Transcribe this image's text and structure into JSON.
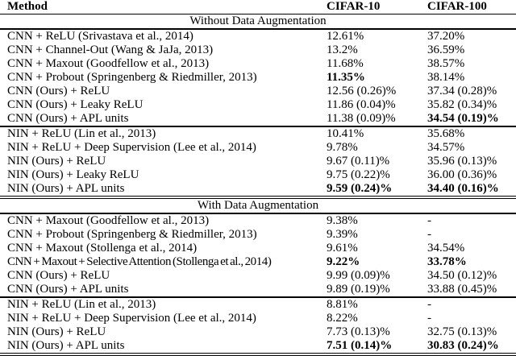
{
  "table": {
    "header": {
      "method": "Method",
      "cifar10": "CIFAR-10",
      "cifar100": "CIFAR-100"
    },
    "sections": [
      {
        "title": "Without Data Augmentation",
        "groups": [
          {
            "rows": [
              {
                "method": "CNN + ReLU (Srivastava et al., 2014)",
                "cifar10": "12.61%",
                "cifar100": "37.20%"
              },
              {
                "method": "CNN + Channel-Out (Wang & JaJa, 2013)",
                "cifar10": "13.2%",
                "cifar100": "36.59%"
              },
              {
                "method": "CNN + Maxout (Goodfellow et al., 2013)",
                "cifar10": "11.68%",
                "cifar100": "38.57%"
              },
              {
                "method": "CNN + Probout (Springenberg & Riedmiller, 2013)",
                "cifar10": "11.35%",
                "cifar10_bold": true,
                "cifar100": "38.14%"
              },
              {
                "method": "CNN (Ours) + ReLU",
                "cifar10": "12.56 (0.26)%",
                "cifar100": "37.34 (0.28)%"
              },
              {
                "method": "CNN (Ours) + Leaky ReLU",
                "cifar10": "11.86 (0.04)%",
                "cifar100": "35.82 (0.34)%"
              },
              {
                "method": "CNN (Ours) + APL units",
                "cifar10": "11.38 (0.09)%",
                "cifar100": "34.54 (0.19)%",
                "cifar100_bold": true
              }
            ]
          },
          {
            "rows": [
              {
                "method": "NIN + ReLU (Lin et al., 2013)",
                "cifar10": "10.41%",
                "cifar100": "35.68%"
              },
              {
                "method": "NIN + ReLU + Deep Supervision (Lee et al., 2014)",
                "cifar10": "9.78%",
                "cifar100": "34.57%"
              },
              {
                "method": "NIN (Ours) + ReLU",
                "cifar10": "9.67 (0.11)%",
                "cifar100": "35.96 (0.13)%"
              },
              {
                "method": "NIN (Ours) + Leaky ReLU",
                "cifar10": "9.75 (0.22)%",
                "cifar100": "36.00 (0.36)%"
              },
              {
                "method": "NIN (Ours) + APL units",
                "cifar10": "9.59 (0.24)%",
                "cifar10_bold": true,
                "cifar100": "34.40 (0.16)%",
                "cifar100_bold": true
              }
            ]
          }
        ]
      },
      {
        "title": "With Data Augmentation",
        "groups": [
          {
            "rows": [
              {
                "method": "CNN + Maxout (Goodfellow et al., 2013)",
                "cifar10": "9.38%",
                "cifar100": "-"
              },
              {
                "method": "CNN + Probout (Springenberg & Riedmiller, 2013)",
                "cifar10": "9.39%",
                "cifar100": "-"
              },
              {
                "method": "CNN + Maxout (Stollenga et al., 2014)",
                "cifar10": "9.61%",
                "cifar100": "34.54%"
              },
              {
                "method": "CNN + Maxout + Selective Attention (Stollenga et al., 2014)",
                "method_tight": true,
                "cifar10": "9.22%",
                "cifar10_bold": true,
                "cifar100": "33.78%",
                "cifar100_bold": true
              },
              {
                "method": "CNN (Ours) + ReLU",
                "cifar10": "9.99 (0.09)%",
                "cifar100": "34.50 (0.12)%"
              },
              {
                "method": "CNN (Ours) + APL units",
                "cifar10": "9.89 (0.19)%",
                "cifar100": "33.88 (0.45)%"
              }
            ]
          },
          {
            "rows": [
              {
                "method": "NIN + ReLU (Lin et al., 2013)",
                "cifar10": "8.81%",
                "cifar100": "-"
              },
              {
                "method": "NIN + ReLU + Deep Supervision (Lee et al., 2014)",
                "cifar10": "8.22%",
                "cifar100": "-"
              },
              {
                "method": "NIN (Ours) + ReLU",
                "cifar10": "7.73 (0.13)%",
                "cifar100": "32.75 (0.13)%"
              },
              {
                "method": "NIN (Ours) + APL units",
                "cifar10": "7.51 (0.14)%",
                "cifar10_bold": true,
                "cifar100": "30.83 (0.24)%",
                "cifar100_bold": true
              }
            ]
          }
        ]
      }
    ]
  }
}
